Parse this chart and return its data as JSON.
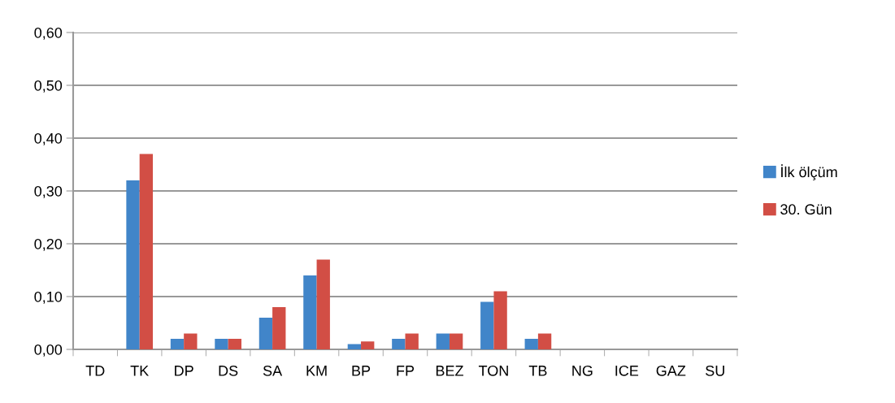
{
  "chart_data": {
    "type": "bar",
    "categories": [
      "TD",
      "TK",
      "DP",
      "DS",
      "SA",
      "KM",
      "BP",
      "FP",
      "BEZ",
      "TON",
      "TB",
      "NG",
      "ICE",
      "GAZ",
      "SU"
    ],
    "series": [
      {
        "name": "İlk ölçüm",
        "color": "#4185c9",
        "values": [
          0,
          0.32,
          0.02,
          0.02,
          0.06,
          0.14,
          0.01,
          0.02,
          0.03,
          0.09,
          0.02,
          0,
          0,
          0,
          0
        ]
      },
      {
        "name": "30. Gün",
        "color": "#d24e45",
        "values": [
          0,
          0.37,
          0.03,
          0.02,
          0.08,
          0.17,
          0.015,
          0.03,
          0.03,
          0.11,
          0.03,
          0,
          0,
          0,
          0
        ]
      }
    ],
    "ylim": [
      0,
      0.6
    ],
    "yticks": [
      {
        "value": 0,
        "label": "0,00"
      },
      {
        "value": 0.1,
        "label": "0,10"
      },
      {
        "value": 0.2,
        "label": "0,20"
      },
      {
        "value": 0.3,
        "label": "0,30"
      },
      {
        "value": 0.4,
        "label": "0,40"
      },
      {
        "value": 0.5,
        "label": "0,50"
      },
      {
        "value": 0.6,
        "label": "0,60"
      }
    ],
    "grid": "y",
    "legend": "right"
  }
}
